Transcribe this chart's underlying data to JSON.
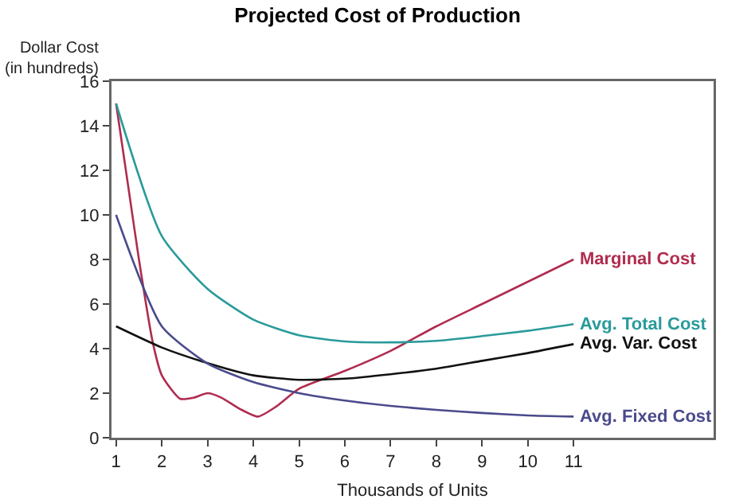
{
  "chart_data": {
    "type": "line",
    "title": "Projected Cost of Production",
    "xlabel": "Thousands of Units",
    "ylabel": "Dollar Cost\n(in hundreds)",
    "xlim": [
      0.9,
      14.06
    ],
    "xticks": [
      1,
      2,
      3,
      4,
      5,
      6,
      7,
      8,
      9,
      10,
      11
    ],
    "ylim": [
      0,
      16
    ],
    "yticks": [
      0,
      2,
      4,
      6,
      8,
      10,
      12,
      14,
      16
    ],
    "grid": false,
    "legend": false,
    "marker": "none",
    "line_style": "solid",
    "series": [
      {
        "name": "Marginal Cost",
        "color": "#b02c4e",
        "x": [
          1,
          1.25,
          1.5,
          1.8,
          2,
          2.4,
          2.7,
          3,
          3.3,
          3.7,
          4.1,
          4.5,
          5,
          6,
          7,
          8,
          9,
          10,
          11
        ],
        "values": [
          15,
          11.5,
          8,
          4.3,
          2.8,
          1.75,
          1.8,
          2,
          1.8,
          1.3,
          0.95,
          1.4,
          2.2,
          3,
          3.9,
          5,
          6,
          7,
          8
        ]
      },
      {
        "name": "Avg. Total Cost",
        "color": "#2a9a9a",
        "x": [
          1,
          2,
          3,
          4,
          5,
          6,
          7,
          8,
          9,
          10,
          11
        ],
        "values": [
          15,
          9.05,
          6.68,
          5.3,
          4.6,
          4.32,
          4.28,
          4.35,
          4.56,
          4.8,
          5.1
        ]
      },
      {
        "name": "Avg. Var. Cost",
        "color": "#111111",
        "x": [
          1,
          2,
          3,
          4,
          5,
          6,
          7,
          8,
          9,
          10,
          11
        ],
        "values": [
          5,
          4.05,
          3.35,
          2.8,
          2.6,
          2.65,
          2.85,
          3.1,
          3.45,
          3.8,
          4.2
        ]
      },
      {
        "name": "Avg. Fixed Cost",
        "color": "#4a4a8c",
        "x": [
          1,
          2,
          3,
          4,
          5,
          6,
          7,
          8,
          9,
          10,
          11
        ],
        "values": [
          10,
          5,
          3.33,
          2.5,
          2,
          1.67,
          1.43,
          1.25,
          1.11,
          1,
          0.95
        ]
      }
    ]
  }
}
